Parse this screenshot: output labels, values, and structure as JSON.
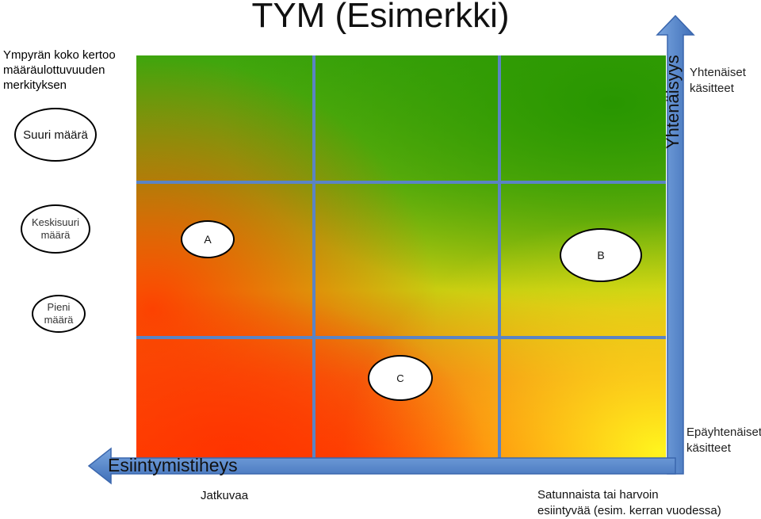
{
  "title": "TYM (Esimerkki)",
  "legend": {
    "title_lines": [
      "Ympyrän koko kertoo",
      "määräulottuvuuden",
      "merkityksen"
    ],
    "sizes": {
      "large": "Suuri määrä",
      "medium_lines": [
        "Keskisuuri",
        "määrä"
      ],
      "small_lines": [
        "Pieni",
        "määrä"
      ]
    }
  },
  "axes": {
    "y_label": "Yhtenäisyys",
    "y_top_lines": [
      "Yhtenäiset",
      "käsitteet"
    ],
    "y_bottom_lines": [
      "Epäyhtenäiset",
      "käsitteet"
    ],
    "x_label": "Esiintymistiheys",
    "x_left": "Jatkuvaa",
    "x_right_lines": [
      "Satunnaista tai harvoin",
      "esiintyvää (esim. kerran vuodessa)"
    ]
  },
  "bubbles": [
    {
      "label": "A",
      "size": "small"
    },
    {
      "label": "B",
      "size": "large"
    },
    {
      "label": "C",
      "size": "medium"
    }
  ],
  "colors": {
    "grid_line": "#5b84c4",
    "arrow": "#5b84c4",
    "top_zone": "#3ea50d",
    "middle_zone": "#f0e010",
    "bottom_zone": "#ff4a00"
  }
}
